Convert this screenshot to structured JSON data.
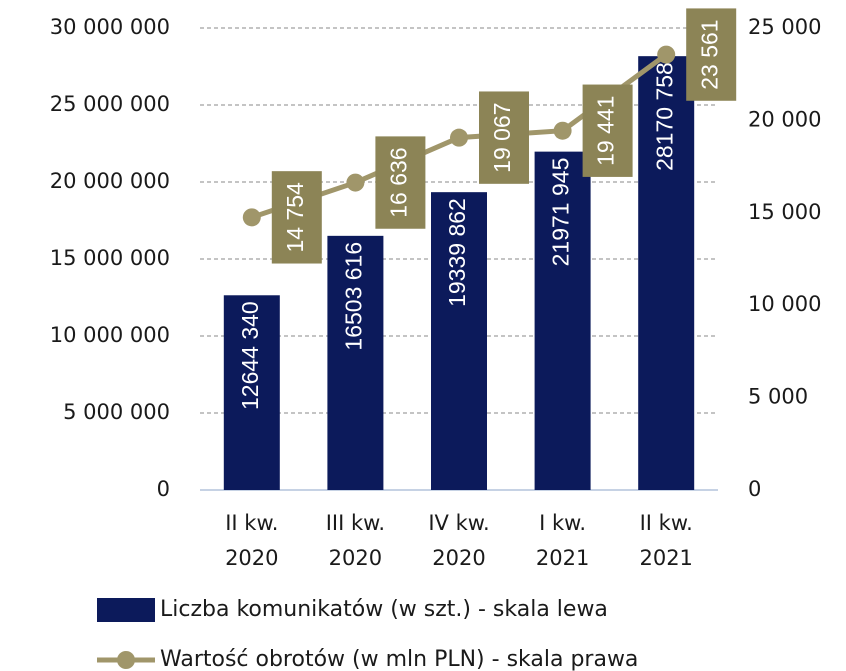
{
  "chart_data": {
    "type": "combo",
    "categories": [
      [
        "II kw.",
        "2020"
      ],
      [
        "III kw.",
        "2020"
      ],
      [
        "IV kw.",
        "2020"
      ],
      [
        "I kw.",
        "2021"
      ],
      [
        "II kw.",
        "2021"
      ]
    ],
    "series": [
      {
        "name": "Liczba komunikatów (w szt.) - skala lewa",
        "type": "bar",
        "color": "#0c1a5b",
        "values": [
          12644340,
          16503616,
          19339862,
          21971945,
          28170758
        ],
        "value_labels": [
          "12644 340",
          "16503 616",
          "19339 862",
          "21971 945",
          "28170 758"
        ]
      },
      {
        "name": "Wartość obrotów (w mln PLN) - skala prawa",
        "type": "line",
        "axis": "y2",
        "color": "#a0966a",
        "label_color": "#8c8456",
        "values": [
          14754,
          16636,
          19067,
          19441,
          23561
        ],
        "value_labels": [
          "14 754",
          "16 636",
          "19 067",
          "19 441",
          "23 561"
        ]
      }
    ],
    "ylim": [
      0,
      30000000
    ],
    "yticks": [
      0,
      {
        "value": 5000000,
        "label": "5 000 000"
      },
      {
        "value": 10000000,
        "label": "10 000 000"
      },
      {
        "value": 15000000,
        "label": "15 000 000"
      },
      {
        "value": 20000000,
        "label": "20 000 000"
      },
      {
        "value": 25000000,
        "label": "25 000 000"
      },
      {
        "value": 30000000,
        "label": "30 000 000"
      }
    ],
    "y2lim": [
      0,
      25000
    ],
    "y2ticks": [
      0,
      {
        "value": 5000,
        "label": "5 000"
      },
      {
        "value": 10000,
        "label": "10 000"
      },
      {
        "value": 15000,
        "label": "15 000"
      },
      {
        "value": 20000,
        "label": "20 000"
      },
      {
        "value": 25000,
        "label": "25 000"
      }
    ],
    "grid": true,
    "legend": "bottom"
  }
}
